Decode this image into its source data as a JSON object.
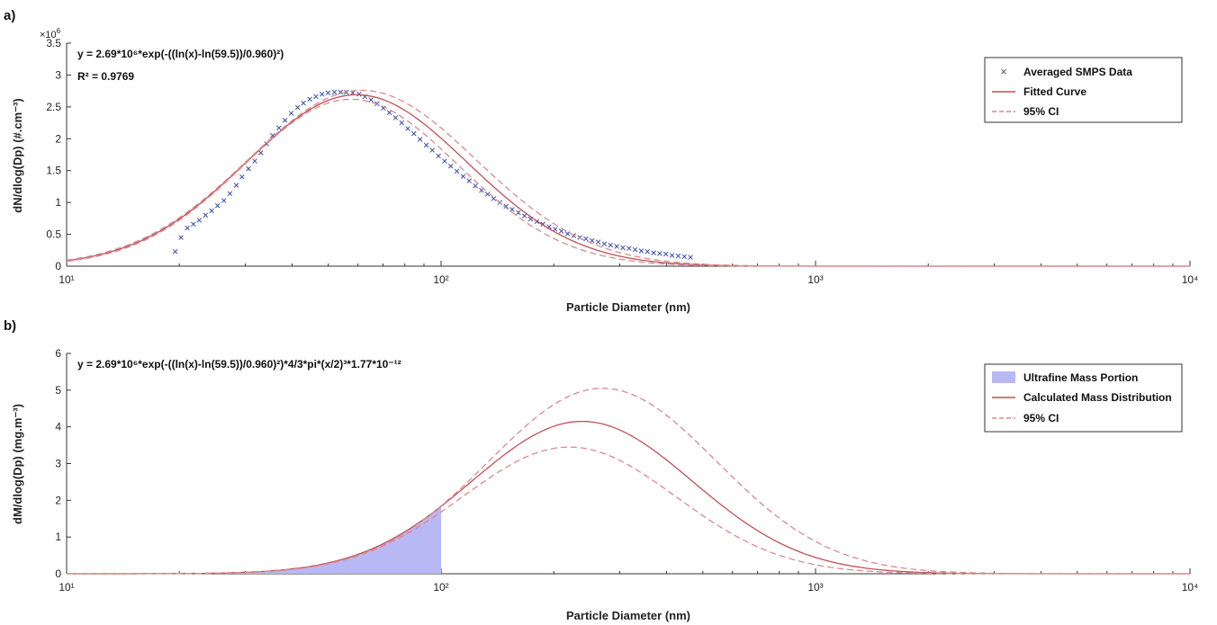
{
  "colors": {
    "fit": "#c0505a",
    "ci": "#d98a8f",
    "smps": "#3a4fa8",
    "ultrafine_fill": "#b8b8f4"
  },
  "chart_data": [
    {
      "type": "line",
      "panel_label": "a)",
      "x_scale": "log",
      "xlim": [
        10,
        10000
      ],
      "xticks": [
        10,
        100,
        1000,
        10000
      ],
      "ylim": [
        0,
        3.5
      ],
      "yticks": [
        0,
        0.5,
        1,
        1.5,
        2,
        2.5,
        3,
        3.5
      ],
      "y_multiplier_label": "×10",
      "y_multiplier_exp": "6",
      "xlabel": "Particle Diameter (nm)",
      "ylabel": "dN/dlog(Dp) (#.cm⁻³)",
      "equation_line1": "y = 2.69*10⁶*exp(-((ln(x)-ln(59.5))/0.960)²)",
      "equation_line2": "R² = 0.9769",
      "legend_placement": "top-right",
      "legend": [
        "Averaged SMPS Data",
        "Fitted Curve",
        "95% CI"
      ],
      "series": [
        {
          "name": "Averaged SMPS Data",
          "style": "markers-x",
          "x": [
            19.5,
            20.2,
            21,
            21.8,
            22.6,
            23.5,
            24.4,
            25.3,
            26.3,
            27.3,
            28.4,
            29.4,
            30.6,
            31.8,
            33,
            34.2,
            35.5,
            36.9,
            38.3,
            39.8,
            41.4,
            42.9,
            44.6,
            46.3,
            48.1,
            49.9,
            51.9,
            53.9,
            55.9,
            58.1,
            60.4,
            62.6,
            65,
            67.5,
            70.1,
            72.8,
            75.6,
            78.5,
            81.5,
            84.6,
            87.9,
            91.3,
            94.7,
            98.4,
            102.2,
            106.1,
            110.2,
            114.5,
            118.9,
            123.5,
            128.2,
            133.1,
            138.2,
            143.5,
            149.1,
            154.8,
            160.8,
            167,
            173.4,
            180.1,
            187.1,
            194.3,
            201.7,
            209.5,
            217.6,
            226,
            234.7,
            243.7,
            253.1,
            262.8,
            273,
            283.5,
            294.4,
            305.8,
            317.6,
            329.8,
            342.5,
            355.7,
            369.4,
            383.6,
            398.4,
            413.8,
            429.8,
            446.4,
            463.6
          ],
          "y": [
            0.23,
            0.45,
            0.6,
            0.66,
            0.72,
            0.8,
            0.87,
            0.95,
            1.03,
            1.14,
            1.27,
            1.4,
            1.53,
            1.65,
            1.78,
            1.92,
            2.05,
            2.17,
            2.29,
            2.4,
            2.49,
            2.56,
            2.62,
            2.66,
            2.7,
            2.72,
            2.73,
            2.73,
            2.73,
            2.72,
            2.7,
            2.66,
            2.61,
            2.55,
            2.48,
            2.41,
            2.33,
            2.25,
            2.16,
            2.08,
            1.99,
            1.9,
            1.82,
            1.73,
            1.65,
            1.57,
            1.49,
            1.41,
            1.34,
            1.26,
            1.19,
            1.13,
            1.06,
            1.0,
            0.94,
            0.89,
            0.84,
            0.79,
            0.74,
            0.7,
            0.66,
            0.62,
            0.58,
            0.55,
            0.51,
            0.48,
            0.45,
            0.43,
            0.4,
            0.38,
            0.35,
            0.33,
            0.31,
            0.29,
            0.28,
            0.26,
            0.24,
            0.23,
            0.21,
            0.2,
            0.19,
            0.17,
            0.16,
            0.15,
            0.14
          ]
        },
        {
          "name": "Fitted Curve",
          "style": "solid",
          "func": "lognormal",
          "amplitude": 2.69,
          "mu_nm": 59.5,
          "sigma": 0.96,
          "x_range": [
            10,
            10000
          ]
        },
        {
          "name": "95% CI",
          "style": "dashed",
          "func": "lognormal",
          "amplitude": 2.62,
          "mu_nm": 57.5,
          "sigma": 0.93,
          "x_range": [
            10,
            10000
          ]
        },
        {
          "name": "95% CI",
          "style": "dashed",
          "func": "lognormal",
          "amplitude": 2.76,
          "mu_nm": 61.5,
          "sigma": 0.99,
          "x_range": [
            10,
            10000
          ]
        }
      ]
    },
    {
      "type": "area",
      "panel_label": "b)",
      "x_scale": "log",
      "xlim": [
        10,
        10000
      ],
      "xticks": [
        10,
        100,
        1000,
        10000
      ],
      "ylim": [
        0,
        6
      ],
      "yticks": [
        0,
        1,
        2,
        3,
        4,
        5,
        6
      ],
      "xlabel": "Particle Diameter (nm)",
      "ylabel": "dM/dlog(Dp) (mg.m⁻³)",
      "equation_line1": "y = 2.69*10⁶*exp(-((ln(x)-ln(59.5))/0.960)²)*4/3*pi*(x/2)³*1.77*10⁻¹²",
      "legend_placement": "top-right",
      "legend": [
        "Ultrafine Mass Portion",
        "Calculated Mass Distribution",
        "95% CI"
      ],
      "series": [
        {
          "name": "Ultrafine Mass Portion",
          "style": "fill",
          "func": "lognormal",
          "amplitude": 4.15,
          "mu_nm": 238,
          "sigma": 0.96,
          "x_range": [
            10,
            100
          ]
        },
        {
          "name": "Calculated Mass Distribution",
          "style": "solid",
          "func": "lognormal",
          "amplitude": 4.15,
          "mu_nm": 238,
          "sigma": 0.96,
          "x_range": [
            10,
            10000
          ]
        },
        {
          "name": "95% CI",
          "style": "dashed",
          "func": "lognormal",
          "amplitude": 5.05,
          "mu_nm": 270,
          "sigma": 0.99,
          "x_range": [
            10,
            10000
          ]
        },
        {
          "name": "95% CI",
          "style": "dashed",
          "func": "lognormal",
          "amplitude": 3.45,
          "mu_nm": 220,
          "sigma": 0.93,
          "x_range": [
            10,
            10000
          ]
        }
      ]
    }
  ]
}
